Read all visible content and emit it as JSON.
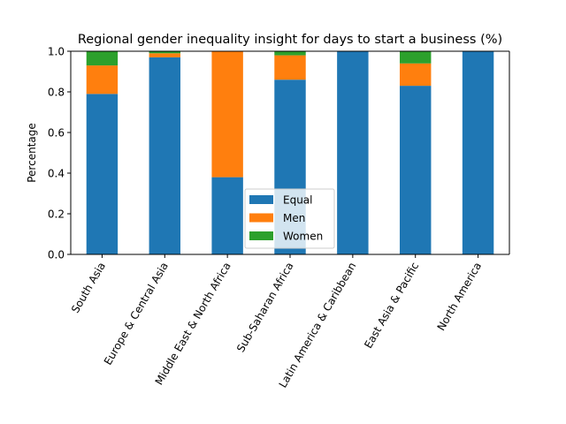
{
  "chart_data": {
    "type": "bar",
    "stacked": true,
    "title": "Regional gender inequality insight for days to start a business (%)",
    "xlabel": "",
    "ylabel": "Percentage",
    "ylim": [
      0,
      1
    ],
    "yticks": [
      "0.0",
      "0.2",
      "0.4",
      "0.6",
      "0.8",
      "1.0"
    ],
    "categories": [
      "South Asia",
      "Europe & Central Asia",
      "Middle East & North Africa",
      "Sub-Saharan Africa",
      "Latin America & Caribbean",
      "East Asia & Pacific",
      "North America"
    ],
    "series": [
      {
        "name": "Equal",
        "color": "#1f77b4",
        "values": [
          0.79,
          0.97,
          0.38,
          0.86,
          1.0,
          0.83,
          1.0
        ]
      },
      {
        "name": "Men",
        "color": "#ff7f0e",
        "values": [
          0.14,
          0.02,
          0.62,
          0.12,
          0.0,
          0.11,
          0.0
        ]
      },
      {
        "name": "Women",
        "color": "#2ca02c",
        "values": [
          0.07,
          0.01,
          0.0,
          0.02,
          0.0,
          0.06,
          0.0
        ]
      }
    ],
    "legend_position": "lower-center",
    "grid": false
  }
}
